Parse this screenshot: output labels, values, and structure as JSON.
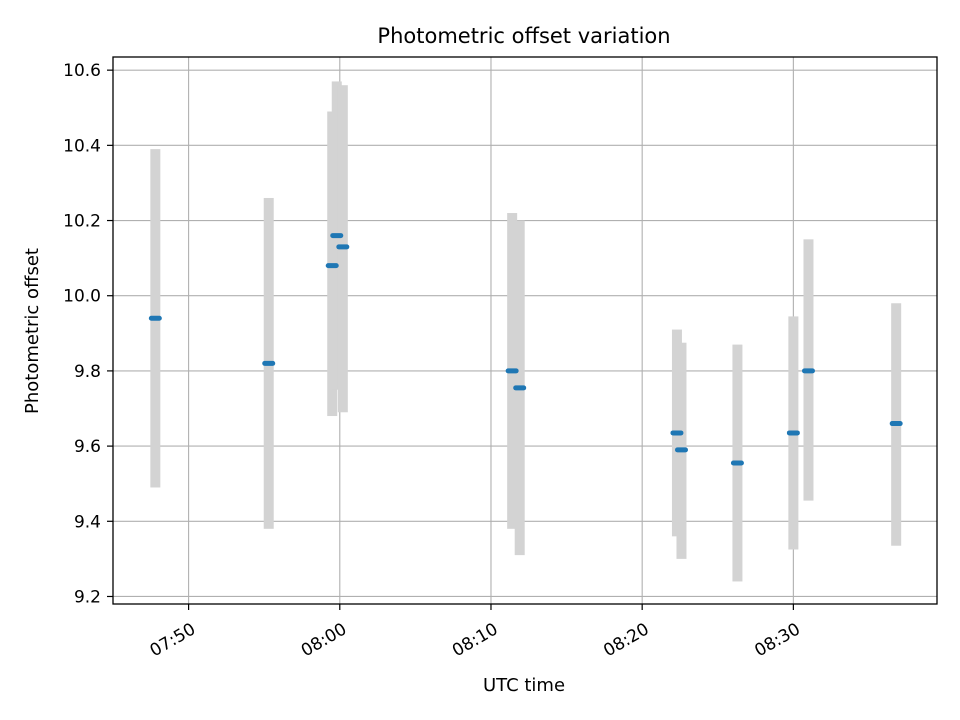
{
  "chart_data": {
    "type": "scatter",
    "title": "Photometric offset variation",
    "xlabel": "UTC time",
    "ylabel": "Photometric offset",
    "grid": true,
    "xlim": [
      "07:45",
      "08:39.5"
    ],
    "ylim": [
      9.18,
      10.635
    ],
    "x_ticks": [
      "07:50",
      "08:00",
      "08:10",
      "08:20",
      "08:30"
    ],
    "y_ticks": [
      "9.2",
      "9.4",
      "9.6",
      "9.8",
      "10.0",
      "10.2",
      "10.4",
      "10.6"
    ],
    "errorbar_color": "#d3d3d3",
    "marker_color": "#1f77b4",
    "points": [
      {
        "time": "07:47.8",
        "y": 9.94,
        "yerr_low": 9.49,
        "yerr_high": 10.39
      },
      {
        "time": "07:55.3",
        "y": 9.82,
        "yerr_low": 9.38,
        "yerr_high": 10.26
      },
      {
        "time": "07:59.5",
        "y": 10.08,
        "yerr_low": 9.68,
        "yerr_high": 10.49
      },
      {
        "time": "07:59.8",
        "y": 10.16,
        "yerr_low": 9.75,
        "yerr_high": 10.57
      },
      {
        "time": "08:00.2",
        "y": 10.13,
        "yerr_low": 9.69,
        "yerr_high": 10.56
      },
      {
        "time": "08:11.4",
        "y": 9.8,
        "yerr_low": 9.38,
        "yerr_high": 10.22
      },
      {
        "time": "08:11.9",
        "y": 9.755,
        "yerr_low": 9.31,
        "yerr_high": 10.2
      },
      {
        "time": "08:22.3",
        "y": 9.635,
        "yerr_low": 9.36,
        "yerr_high": 9.91
      },
      {
        "time": "08:22.6",
        "y": 9.59,
        "yerr_low": 9.3,
        "yerr_high": 9.875
      },
      {
        "time": "08:26.3",
        "y": 9.555,
        "yerr_low": 9.24,
        "yerr_high": 9.87
      },
      {
        "time": "08:30.0",
        "y": 9.635,
        "yerr_low": 9.325,
        "yerr_high": 9.945
      },
      {
        "time": "08:31.0",
        "y": 9.8,
        "yerr_low": 9.455,
        "yerr_high": 10.15
      },
      {
        "time": "08:36.8",
        "y": 9.66,
        "yerr_low": 9.335,
        "yerr_high": 9.98
      }
    ]
  }
}
